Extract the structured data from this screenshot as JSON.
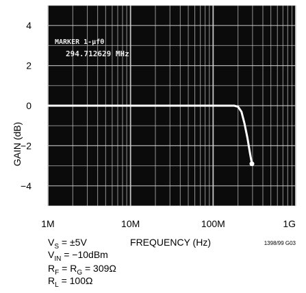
{
  "chart_data": {
    "type": "line",
    "ylabel": "GAIN (dB)",
    "xlabel": "FREQUENCY (Hz)",
    "x_scale": "log",
    "xlim": [
      1000000,
      1000000000
    ],
    "ylim": [
      -5,
      5
    ],
    "x_ticks": [
      {
        "value": 1000000,
        "label": "1M"
      },
      {
        "value": 10000000,
        "label": "10M"
      },
      {
        "value": 100000000,
        "label": "100M"
      },
      {
        "value": 1000000000,
        "label": "1G"
      }
    ],
    "y_ticks": [
      {
        "value": 4,
        "label": "4"
      },
      {
        "value": 2,
        "label": "2"
      },
      {
        "value": 0,
        "label": "0"
      },
      {
        "value": -2,
        "label": "−2"
      },
      {
        "value": -4,
        "label": "−4"
      }
    ],
    "grid": true,
    "series": [
      {
        "x": [
          1000000,
          3000000,
          10000000,
          30000000,
          100000000,
          150000000,
          180000000,
          200000000,
          220000000,
          240000000,
          260000000,
          280000000,
          295000000
        ],
        "y": [
          0,
          0,
          0,
          0,
          0,
          0,
          0,
          -0.05,
          -0.3,
          -0.9,
          -1.6,
          -2.4,
          -2.9
        ]
      }
    ],
    "marker": {
      "x": 294712629,
      "y": -2.9
    },
    "annotations": {
      "marker_label": "MARKER 1-μfθ",
      "marker_freq": "294.712629 MHz"
    },
    "conditions": {
      "vs": {
        "main": "V",
        "sub": "S",
        "rest": " = ±5V"
      },
      "vin": {
        "main": "V",
        "sub": "IN",
        "rest": " = −10dBm"
      },
      "rf": {
        "main1": "R",
        "sub1": "F",
        "mid": " = R",
        "sub2": "G",
        "rest": " = 309Ω"
      },
      "rl": {
        "main": "R",
        "sub": "L",
        "rest": " = 100Ω"
      }
    },
    "figure_id": "1398/99 G03",
    "colors": {
      "screen_bg": "#0b0b0b",
      "grid": "#cfcfcf",
      "trace": "#ffffff",
      "text": "#000000"
    }
  }
}
